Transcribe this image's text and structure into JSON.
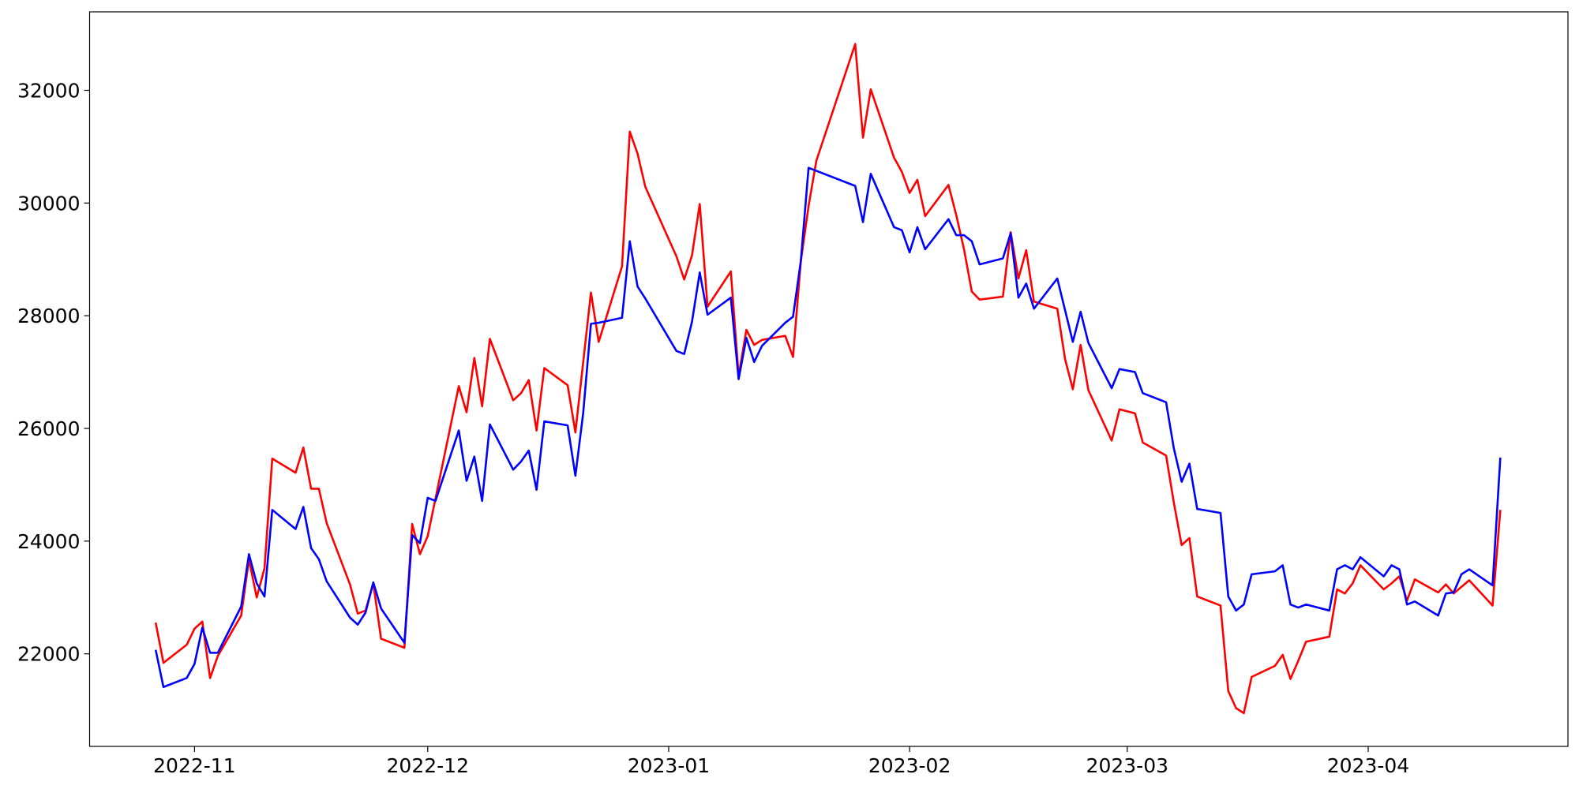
{
  "chart_data": {
    "type": "line",
    "xlim": [
      19283.5,
      19473.7
    ],
    "xticks": [
      {
        "value": 19297,
        "label": "2022-11"
      },
      {
        "value": 19327,
        "label": "2022-12"
      },
      {
        "value": 19358,
        "label": "2023-01"
      },
      {
        "value": 19389,
        "label": "2023-02"
      },
      {
        "value": 19417,
        "label": "2023-03"
      },
      {
        "value": 19448,
        "label": "2023-04"
      }
    ],
    "ylim": [
      20357,
      33393
    ],
    "yticks": [
      22000,
      24000,
      26000,
      28000,
      30000,
      32000
    ],
    "series": [
      {
        "color": "#ff0000",
        "x": [
          19292,
          19293,
          19296,
          19297,
          19298,
          19299,
          19300,
          19303,
          19304,
          19305,
          19306,
          19307,
          19310,
          19311,
          19312,
          19313,
          19314,
          19317,
          19318,
          19319,
          19320,
          19321,
          19324,
          19325,
          19326,
          19327,
          19331,
          19332,
          19333,
          19334,
          19335,
          19338,
          19339,
          19340,
          19341,
          19342,
          19345,
          19346,
          19348,
          19349,
          19352,
          19353,
          19354,
          19355,
          19359,
          19360,
          19361,
          19362,
          19363,
          19366,
          19367,
          19368,
          19369,
          19370,
          19373,
          19374,
          19375,
          19376,
          19377,
          19382,
          19383,
          19384,
          19387,
          19388,
          19389,
          19390,
          19391,
          19394,
          19395,
          19396,
          19397,
          19398,
          19401,
          19402,
          19403,
          19404,
          19405,
          19408,
          19409,
          19410,
          19411,
          19412,
          19415,
          19416,
          19418,
          19419,
          19422,
          19423,
          19424,
          19425,
          19426,
          19429,
          19430,
          19431,
          19432,
          19433,
          19436,
          19437,
          19438,
          19439,
          19440,
          19443,
          19444,
          19445,
          19446,
          19447,
          19450,
          19451,
          19452,
          19453,
          19454,
          19457,
          19458,
          19459,
          19461,
          19464,
          19465
        ],
        "values": [
          22554,
          21839,
          22161,
          22446,
          22571,
          21571,
          21964,
          22679,
          23679,
          23000,
          23518,
          25464,
          25214,
          25661,
          24929,
          24929,
          24321,
          23232,
          22714,
          22768,
          23250,
          22268,
          22107,
          24304,
          23768,
          24089,
          26750,
          26286,
          27250,
          26393,
          27589,
          26500,
          26625,
          26857,
          25964,
          27071,
          26768,
          25929,
          28411,
          27536,
          28875,
          31268,
          30875,
          30286,
          29054,
          28643,
          29071,
          29982,
          28161,
          28786,
          26929,
          27750,
          27482,
          27571,
          27643,
          27268,
          28964,
          29946,
          30750,
          32821,
          31161,
          32018,
          30804,
          30554,
          30179,
          30411,
          29768,
          30321,
          29786,
          29179,
          28429,
          28286,
          28339,
          29482,
          28661,
          29161,
          28250,
          28125,
          27232,
          26696,
          27482,
          26679,
          25786,
          26339,
          26268,
          25750,
          25518,
          24679,
          23929,
          24054,
          23018,
          22857,
          21339,
          21036,
          20946,
          21589,
          21786,
          21982,
          21554,
          21875,
          22214,
          22304,
          23143,
          23071,
          23250,
          23571,
          23143,
          23250,
          23375,
          22946,
          23321,
          23089,
          23232,
          23071,
          23304,
          22857,
          24554
        ]
      },
      {
        "color": "#0000ff",
        "x": [
          19292,
          19293,
          19296,
          19297,
          19298,
          19299,
          19300,
          19303,
          19304,
          19305,
          19306,
          19307,
          19310,
          19311,
          19312,
          19313,
          19314,
          19317,
          19318,
          19319,
          19320,
          19321,
          19324,
          19325,
          19326,
          19327,
          19328,
          19331,
          19332,
          19333,
          19334,
          19335,
          19338,
          19339,
          19340,
          19341,
          19342,
          19345,
          19346,
          19347,
          19348,
          19349,
          19352,
          19353,
          19354,
          19355,
          19359,
          19360,
          19361,
          19362,
          19363,
          19366,
          19367,
          19368,
          19369,
          19370,
          19373,
          19374,
          19375,
          19376,
          19382,
          19383,
          19384,
          19387,
          19388,
          19389,
          19390,
          19391,
          19394,
          19395,
          19396,
          19397,
          19398,
          19401,
          19402,
          19403,
          19404,
          19405,
          19408,
          19410,
          19411,
          19412,
          19415,
          19416,
          19418,
          19419,
          19422,
          19423,
          19424,
          19425,
          19426,
          19429,
          19430,
          19431,
          19432,
          19433,
          19436,
          19437,
          19438,
          19439,
          19440,
          19443,
          19444,
          19445,
          19446,
          19447,
          19450,
          19451,
          19452,
          19453,
          19454,
          19457,
          19458,
          19459,
          19460,
          19461,
          19464,
          19465
        ],
        "values": [
          22071,
          21411,
          21571,
          21821,
          22464,
          22018,
          22018,
          22839,
          23768,
          23250,
          23018,
          24554,
          24214,
          24607,
          23875,
          23679,
          23286,
          22643,
          22518,
          22732,
          23268,
          22804,
          22196,
          24107,
          23964,
          24768,
          24714,
          25964,
          25071,
          25500,
          24714,
          26071,
          25268,
          25411,
          25607,
          24911,
          26125,
          26054,
          25161,
          26268,
          27857,
          27875,
          27964,
          29321,
          28518,
          28304,
          27375,
          27321,
          27893,
          28768,
          28018,
          28321,
          26875,
          27607,
          27179,
          27464,
          27875,
          27982,
          28964,
          30625,
          30304,
          29661,
          30518,
          29571,
          29518,
          29125,
          29571,
          29179,
          29714,
          29429,
          29429,
          29321,
          28911,
          29018,
          29464,
          28321,
          28571,
          28125,
          28661,
          27536,
          28071,
          27518,
          26714,
          27054,
          27000,
          26625,
          26464,
          25643,
          25054,
          25375,
          24571,
          24500,
          23018,
          22768,
          22875,
          23411,
          23464,
          23571,
          22875,
          22821,
          22875,
          22768,
          23500,
          23571,
          23500,
          23714,
          23375,
          23571,
          23500,
          22875,
          22929,
          22679,
          23071,
          23089,
          23411,
          23500,
          23214,
          25482
        ]
      }
    ]
  }
}
